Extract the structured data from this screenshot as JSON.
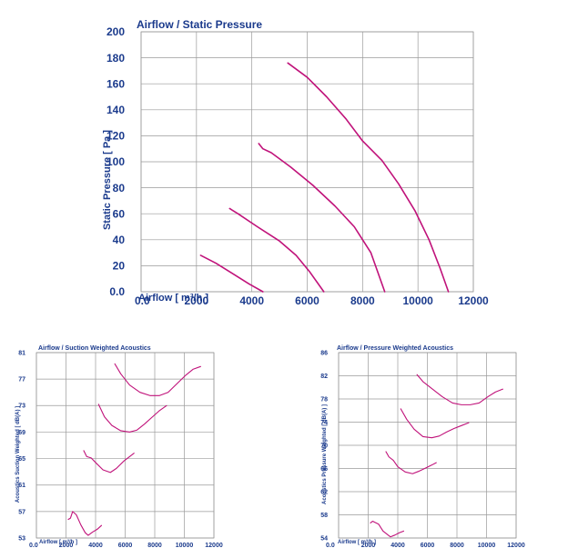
{
  "chart_data": [
    {
      "type": "line",
      "title": "Airflow / Static Pressure",
      "xlabel": "Airflow [ m³/h ]",
      "ylabel": "Static Pressure [ Pa ]",
      "xlim": [
        0,
        12000
      ],
      "ylim": [
        0,
        200
      ],
      "x_ticks": [
        "0.0",
        "2000",
        "4000",
        "6000",
        "8000",
        "10000",
        "12000"
      ],
      "y_ticks": [
        "0.0",
        "20",
        "40",
        "60",
        "80",
        "100",
        "120",
        "140",
        "160",
        "180",
        "200"
      ],
      "x_tick_values": [
        0,
        2000,
        4000,
        6000,
        8000,
        10000,
        12000
      ],
      "y_tick_values": [
        0,
        20,
        40,
        60,
        80,
        100,
        120,
        140,
        160,
        180,
        200
      ],
      "grid": true,
      "series": [
        {
          "x": [
            2150,
            2700,
            3300,
            3900,
            4400
          ],
          "values": [
            28,
            22,
            14,
            6,
            0
          ]
        },
        {
          "x": [
            3200,
            3500,
            4200,
            5000,
            5600,
            6100,
            6600
          ],
          "values": [
            64,
            60,
            50,
            39,
            28,
            15,
            0
          ]
        },
        {
          "x": [
            4250,
            4400,
            4700,
            5400,
            6200,
            7000,
            7700,
            8300,
            8800
          ],
          "values": [
            114,
            110,
            107,
            96,
            82,
            66,
            50,
            30,
            0
          ]
        },
        {
          "x": [
            5300,
            6000,
            6700,
            7400,
            8000,
            8700,
            9300,
            9900,
            10400,
            10800,
            11100
          ],
          "values": [
            176,
            165,
            150,
            133,
            116,
            101,
            83,
            62,
            40,
            18,
            0
          ]
        }
      ]
    },
    {
      "type": "line",
      "title": "Airflow / Suction Weighted Acoustics",
      "xlabel": "Airflow [ m³/h ]",
      "ylabel": "Acoustics Suction Weighted [ dB(A) ]",
      "xlim": [
        0,
        12000
      ],
      "ylim": [
        53,
        81
      ],
      "x_ticks": [
        "0.0",
        "2000",
        "4000",
        "6000",
        "8000",
        "10000",
        "12000"
      ],
      "y_ticks": [
        "53",
        "57",
        "61",
        "65",
        "69",
        "73",
        "77",
        "81"
      ],
      "x_tick_values": [
        0,
        2000,
        4000,
        6000,
        8000,
        10000,
        12000
      ],
      "y_tick_values": [
        53,
        57,
        61,
        65,
        69,
        73,
        77,
        81
      ],
      "grid": true,
      "series": [
        {
          "x": [
            2150,
            2300,
            2450,
            2700,
            3000,
            3300,
            3500,
            3800,
            4100,
            4400
          ],
          "values": [
            55.8,
            56.0,
            57.0,
            56.5,
            55.0,
            53.8,
            53.4,
            53.9,
            54.3,
            54.9
          ]
        },
        {
          "x": [
            3200,
            3400,
            3700,
            4000,
            4500,
            5000,
            5400,
            5900,
            6300,
            6600
          ],
          "values": [
            66.2,
            65.3,
            65.1,
            64.4,
            63.3,
            62.9,
            63.5,
            64.6,
            65.3,
            65.8
          ]
        },
        {
          "x": [
            4200,
            4600,
            5100,
            5700,
            6300,
            6800,
            7300,
            7800,
            8300,
            8800
          ],
          "values": [
            73.2,
            71.3,
            70.0,
            69.2,
            69.0,
            69.3,
            70.2,
            71.2,
            72.2,
            73.0
          ]
        },
        {
          "x": [
            5300,
            5700,
            6300,
            7000,
            7700,
            8300,
            8900,
            9500,
            10100,
            10600,
            11100
          ],
          "values": [
            79.3,
            77.8,
            76.1,
            75.0,
            74.5,
            74.5,
            75.0,
            76.3,
            77.6,
            78.5,
            78.9
          ]
        }
      ]
    },
    {
      "type": "line",
      "title": "Airflow / Pressure Weighted Acoustics",
      "xlabel": "Airflow [ m³/h ]",
      "ylabel": "Acoustics Pressure Weighted [ dB(A) ]",
      "xlim": [
        0,
        12000
      ],
      "ylim": [
        54,
        86
      ],
      "x_ticks": [
        "0.0",
        "2000",
        "4000",
        "6000",
        "8000",
        "10000",
        "12000"
      ],
      "y_ticks": [
        "54",
        "58",
        "62",
        "66",
        "70",
        "74",
        "78",
        "82",
        "86"
      ],
      "x_tick_values": [
        0,
        2000,
        4000,
        6000,
        8000,
        10000,
        12000
      ],
      "y_tick_values": [
        54,
        58,
        62,
        66,
        70,
        74,
        78,
        82,
        86
      ],
      "grid": true,
      "series": [
        {
          "x": [
            2150,
            2300,
            2450,
            2700,
            3000,
            3300,
            3500,
            3800,
            4100,
            4400
          ],
          "values": [
            56.6,
            56.9,
            56.7,
            56.4,
            55.2,
            54.6,
            54.2,
            54.5,
            54.9,
            55.2
          ]
        },
        {
          "x": [
            3200,
            3400,
            3700,
            4000,
            4500,
            5000,
            5400,
            5900,
            6300,
            6600
          ],
          "values": [
            68.9,
            68.0,
            67.4,
            66.3,
            65.4,
            65.1,
            65.5,
            66.1,
            66.6,
            67.0
          ]
        },
        {
          "x": [
            4200,
            4600,
            5100,
            5700,
            6300,
            6800,
            7300,
            7800,
            8300,
            8800
          ],
          "values": [
            76.3,
            74.5,
            72.8,
            71.5,
            71.3,
            71.6,
            72.3,
            72.9,
            73.4,
            73.9
          ]
        },
        {
          "x": [
            5300,
            5700,
            6300,
            7000,
            7700,
            8300,
            8900,
            9500,
            10100,
            10600,
            11100
          ],
          "values": [
            82.2,
            81.0,
            79.8,
            78.4,
            77.3,
            77.0,
            77.0,
            77.3,
            78.4,
            79.2,
            79.7
          ]
        }
      ]
    }
  ]
}
